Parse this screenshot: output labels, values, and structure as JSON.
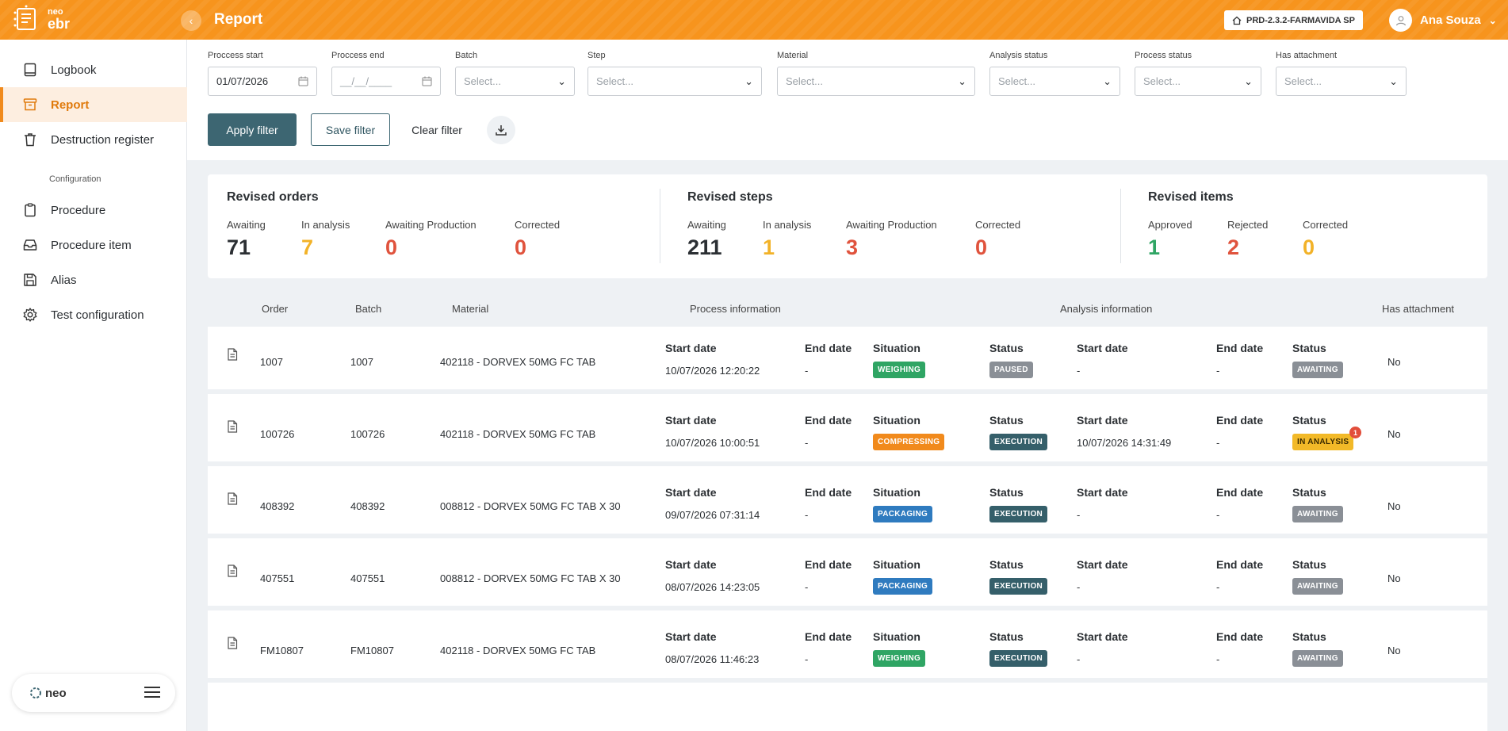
{
  "app": {
    "logo_small": "neo",
    "logo_big": "ebr",
    "page_title": "Report",
    "environment": "PRD-2.3.2-FARMAVIDA SP",
    "user_name": "Ana Souza"
  },
  "sidebar": {
    "items": [
      {
        "label": "Logbook",
        "icon": "book-icon"
      },
      {
        "label": "Report",
        "icon": "archive-icon",
        "active": true
      },
      {
        "label": "Destruction register",
        "icon": "trash-icon"
      }
    ],
    "section_label": "Configuration",
    "config_items": [
      {
        "label": "Procedure",
        "icon": "clipboard-icon"
      },
      {
        "label": "Procedure item",
        "icon": "inbox-icon"
      },
      {
        "label": "Alias",
        "icon": "save-icon"
      },
      {
        "label": "Test configuration",
        "icon": "gear-icon"
      }
    ],
    "footer_logo": "neo"
  },
  "filters": {
    "process_start": {
      "label": "Proccess start",
      "value": "01/07/2026"
    },
    "process_end": {
      "label": "Proccess end",
      "placeholder": "__/__/____"
    },
    "batch": {
      "label": "Batch",
      "placeholder": "Select..."
    },
    "step": {
      "label": "Step",
      "placeholder": "Select..."
    },
    "material": {
      "label": "Material",
      "placeholder": "Select..."
    },
    "analysis_status": {
      "label": "Analysis status",
      "placeholder": "Select..."
    },
    "process_status": {
      "label": "Process status",
      "placeholder": "Select..."
    },
    "has_attachment": {
      "label": "Has attachment",
      "placeholder": "Select..."
    },
    "apply_label": "Apply filter",
    "save_label": "Save filter",
    "clear_label": "Clear filter"
  },
  "summary": {
    "orders": {
      "title": "Revised orders",
      "items": [
        {
          "label": "Awaiting",
          "value": "71",
          "color": "#2b2f33"
        },
        {
          "label": "In analysis",
          "value": "7",
          "color": "#f2b228"
        },
        {
          "label": "Awaiting Production",
          "value": "0",
          "color": "#e0533d"
        },
        {
          "label": "Corrected",
          "value": "0",
          "color": "#e0533d"
        }
      ]
    },
    "steps": {
      "title": "Revised steps",
      "items": [
        {
          "label": "Awaiting",
          "value": "211",
          "color": "#2b2f33"
        },
        {
          "label": "In analysis",
          "value": "1",
          "color": "#f2b228"
        },
        {
          "label": "Awaiting Production",
          "value": "3",
          "color": "#e0533d"
        },
        {
          "label": "Corrected",
          "value": "0",
          "color": "#e0533d"
        }
      ]
    },
    "items": {
      "title": "Revised items",
      "items": [
        {
          "label": "Approved",
          "value": "1",
          "color": "#2fa564"
        },
        {
          "label": "Rejected",
          "value": "2",
          "color": "#e0533d"
        },
        {
          "label": "Corrected",
          "value": "0",
          "color": "#f2b228"
        }
      ]
    }
  },
  "table": {
    "headers": {
      "order": "Order",
      "batch": "Batch",
      "material": "Material",
      "process_info": "Process information",
      "analysis_info": "Analysis information",
      "has_attachment": "Has attachment"
    },
    "field_labels": {
      "start_date": "Start date",
      "end_date": "End date",
      "situation": "Situation",
      "status": "Status"
    },
    "rows": [
      {
        "order": "1007",
        "batch": "1007",
        "material": "402118 - DORVEX 50MG FC TAB",
        "p_start": "10/07/2026 12:20:22",
        "p_end": "-",
        "situation": "WEIGHING",
        "situation_color": "green",
        "p_status": "PAUSED",
        "p_status_color": "gray",
        "a_start": "-",
        "a_end": "-",
        "a_status": "AWAITING",
        "a_status_color": "gray",
        "a_notif": "",
        "attachment": "No"
      },
      {
        "order": "100726",
        "batch": "100726",
        "material": "402118 - DORVEX 50MG FC TAB",
        "p_start": "10/07/2026 10:00:51",
        "p_end": "-",
        "situation": "COMPRESSING",
        "situation_color": "orange",
        "p_status": "EXECUTION",
        "p_status_color": "teal",
        "a_start": "10/07/2026 14:31:49",
        "a_end": "-",
        "a_status": "IN ANALYSIS",
        "a_status_color": "yellow",
        "a_notif": "1",
        "attachment": "No"
      },
      {
        "order": "408392",
        "batch": "408392",
        "material": "008812 - DORVEX 50MG FC TAB X 30",
        "p_start": "09/07/2026 07:31:14",
        "p_end": "-",
        "situation": "PACKAGING",
        "situation_color": "blue",
        "p_status": "EXECUTION",
        "p_status_color": "teal",
        "a_start": "-",
        "a_end": "-",
        "a_status": "AWAITING",
        "a_status_color": "gray",
        "a_notif": "",
        "attachment": "No"
      },
      {
        "order": "407551",
        "batch": "407551",
        "material": "008812 - DORVEX 50MG FC TAB X 30",
        "p_start": "08/07/2026 14:23:05",
        "p_end": "-",
        "situation": "PACKAGING",
        "situation_color": "blue",
        "p_status": "EXECUTION",
        "p_status_color": "teal",
        "a_start": "-",
        "a_end": "-",
        "a_status": "AWAITING",
        "a_status_color": "gray",
        "a_notif": "",
        "attachment": "No"
      },
      {
        "order": "FM10807",
        "batch": "FM10807",
        "material": "402118 - DORVEX 50MG FC TAB",
        "p_start": "08/07/2026 11:46:23",
        "p_end": "-",
        "situation": "WEIGHING",
        "situation_color": "green",
        "p_status": "EXECUTION",
        "p_status_color": "teal",
        "a_start": "-",
        "a_end": "-",
        "a_status": "AWAITING",
        "a_status_color": "gray",
        "a_notif": "",
        "attachment": "No"
      }
    ]
  }
}
